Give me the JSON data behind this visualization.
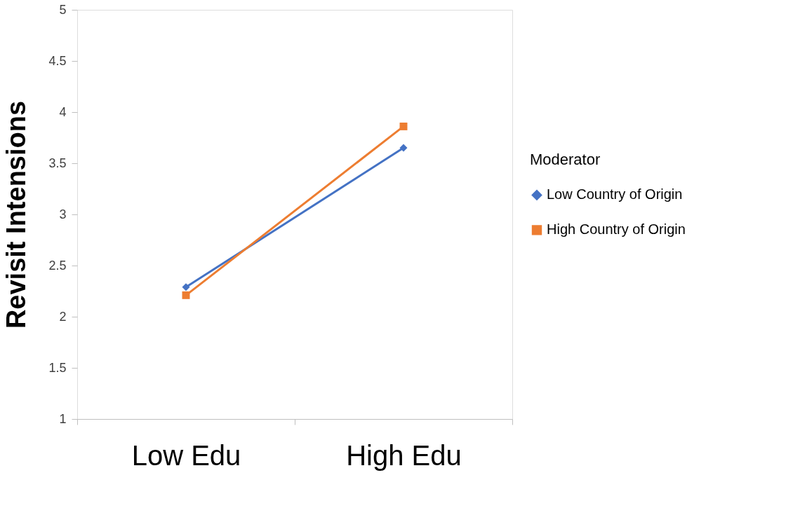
{
  "chart_data": {
    "type": "line",
    "ylabel": "Revisit Intensions",
    "legend_title": "Moderator",
    "categories": [
      "Low Edu",
      "High Edu"
    ],
    "series": [
      {
        "name": "Low Country of Origin",
        "color": "#4472c4",
        "marker": "diamond",
        "values": [
          2.29,
          3.65
        ]
      },
      {
        "name": "High Country of Origin",
        "color": "#ed7d31",
        "marker": "square",
        "values": [
          2.21,
          3.86
        ]
      }
    ],
    "ylim": [
      1,
      5
    ],
    "yticks": [
      1,
      1.5,
      2,
      2.5,
      3,
      3.5,
      4,
      4.5,
      5
    ],
    "grid": false,
    "legend": "right",
    "line_style": "solid"
  }
}
